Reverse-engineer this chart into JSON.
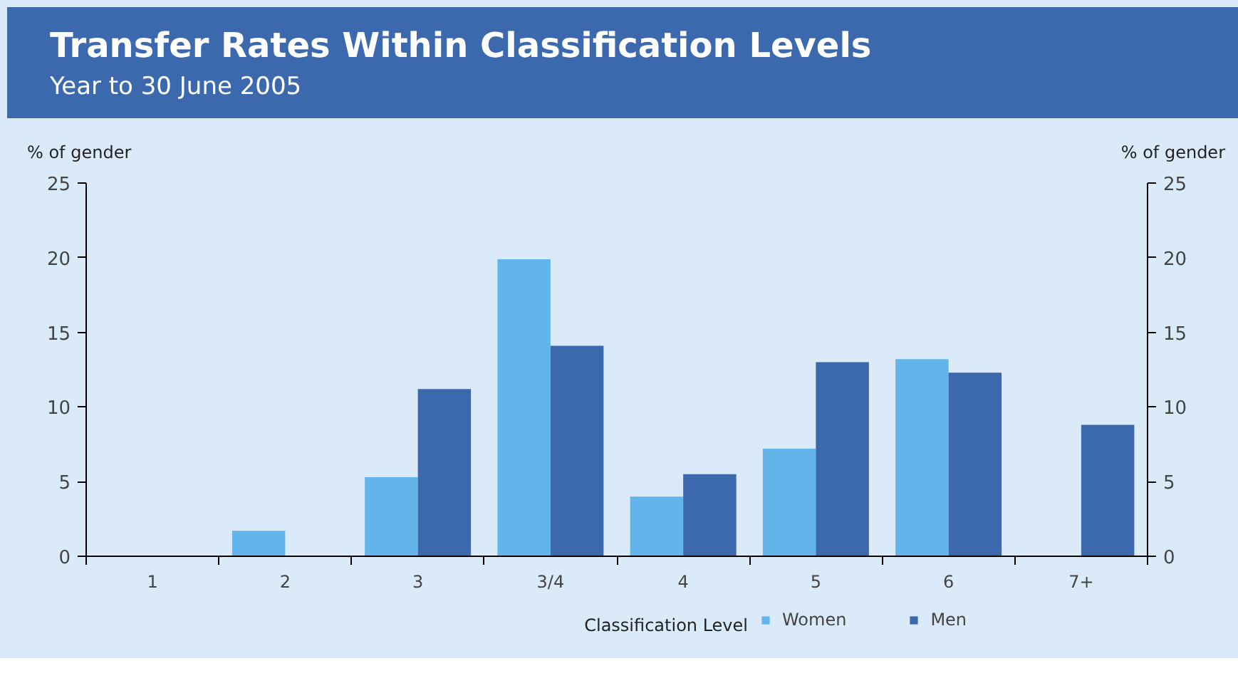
{
  "chart_data": {
    "type": "bar",
    "title": "Transfer Rates Within Classification Levels",
    "subtitle": "Year to 30 June 2005",
    "xlabel": "Classification Level",
    "ylabel": "% of gender",
    "y2label": "% of gender",
    "categories": [
      "1",
      "2",
      "3",
      "3/4",
      "4",
      "5",
      "6",
      "7+"
    ],
    "series": [
      {
        "name": "Women",
        "color": "#63b4ea",
        "values": [
          null,
          1.7,
          5.3,
          19.9,
          4.0,
          7.2,
          13.2,
          null
        ]
      },
      {
        "name": "Men",
        "color": "#3c68ad",
        "values": [
          null,
          null,
          11.2,
          14.1,
          5.5,
          13.0,
          12.3,
          8.8
        ]
      }
    ],
    "ylim": [
      0,
      25
    ],
    "yticks": [
      0,
      5,
      10,
      15,
      20,
      25
    ],
    "y2lim": [
      0,
      25
    ],
    "y2ticks": [
      0,
      5,
      10,
      15,
      20,
      25
    ],
    "grid": false,
    "legend": "bottom right"
  }
}
